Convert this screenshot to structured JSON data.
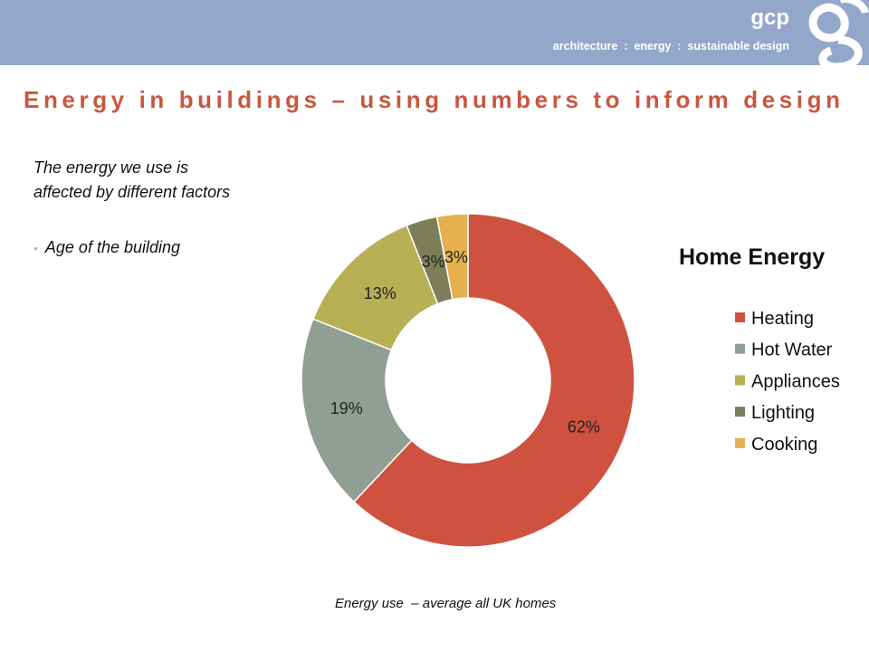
{
  "header": {
    "brand": "gcp",
    "tagline": "architecture  :  energy  :  sustainable design",
    "logo_icon": "gcp-logo-icon",
    "bg_color": "#93a7cb"
  },
  "slide": {
    "title": "Energy in buildings – using numbers to inform design",
    "body_text": "The energy we use is affected by different factors",
    "bullets": [
      "Age of the building"
    ],
    "caption": "Energy use  – average all UK homes"
  },
  "chart_data": {
    "type": "pie",
    "variant": "doughnut",
    "title": "Home Energy",
    "legend_position": "right",
    "categories": [
      "Heating",
      "Hot Water",
      "Appliances",
      "Lighting",
      "Cooking"
    ],
    "values": [
      62,
      19,
      13,
      3,
      3
    ],
    "labels": [
      "62%",
      "19%",
      "13%",
      "3%",
      "3%"
    ],
    "colors": [
      "#cf5240",
      "#919e94",
      "#b7b054",
      "#7d7d58",
      "#e6b04e"
    ],
    "start": "top",
    "direction": "clockwise"
  }
}
